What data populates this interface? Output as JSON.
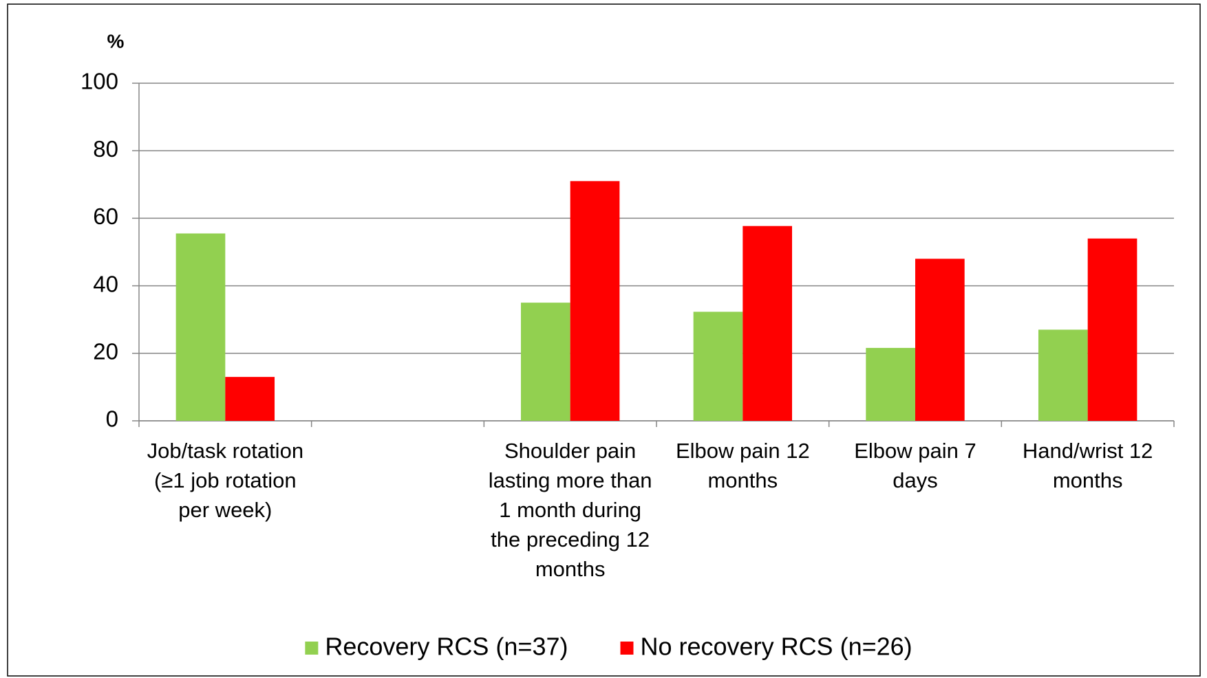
{
  "chart_data": {
    "type": "bar",
    "y_label": "%",
    "categories": [
      "Job/task rotation (≥1 job rotation per week)",
      null,
      "Shoulder pain lasting more than 1 month during the preceding 12 months",
      "Elbow pain 12 months",
      "Elbow pain 7 days",
      "Hand/wrist 12 months"
    ],
    "series": [
      {
        "name": "Recovery RCS (n=37)",
        "color": "#92d050",
        "values": [
          55.5,
          null,
          35,
          32.3,
          21.6,
          27
        ]
      },
      {
        "name": "No recovery RCS (n=26)",
        "color": "#ff0000",
        "values": [
          13,
          null,
          71,
          57.7,
          48,
          54
        ]
      }
    ],
    "ylim": [
      0,
      100
    ],
    "yticks": [
      0,
      20,
      40,
      60,
      80,
      100
    ],
    "grid": true,
    "legend": "bottom"
  }
}
